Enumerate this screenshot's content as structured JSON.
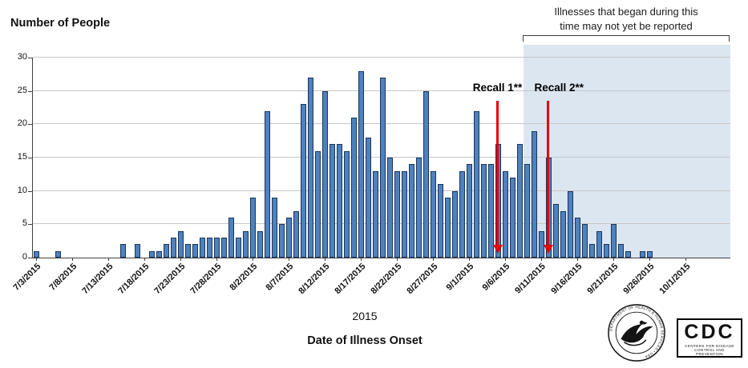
{
  "title": "Number of People",
  "note": {
    "line1": "Illnesses that began during this",
    "line2": "time may not yet be reported"
  },
  "x_year_label": "2015",
  "x_axis_title": "Date of Illness Onset",
  "logos": {
    "hhs_ring_text": "DEPARTMENT OF HEALTH & HUMAN SERVICES • USA",
    "cdc_acronym": "CDC",
    "cdc_tagline": "CENTERS FOR DISEASE CONTROL AND PREVENTION"
  },
  "chart_data": {
    "type": "bar",
    "title": "Number of People",
    "xlabel": "Date of Illness Onset",
    "ylabel": "Number of People",
    "year": "2015",
    "ylim": [
      0,
      30
    ],
    "yticks": [
      0,
      5,
      10,
      15,
      20,
      25,
      30
    ],
    "grid": "horizontal",
    "bar_color": "#4f81bd",
    "bar_border_color": "#17365d",
    "x_tick_labels": [
      "7/3/2015",
      "7/8/2015",
      "7/13/2015",
      "7/18/2015",
      "7/23/2015",
      "7/28/2015",
      "8/2/2015",
      "8/7/2015",
      "8/12/2015",
      "8/17/2015",
      "8/22/2015",
      "8/27/2015",
      "9/1/2015",
      "9/6/2015",
      "9/11/2015",
      "9/16/2015",
      "9/21/2015",
      "9/26/2015",
      "10/1/2015"
    ],
    "dates": [
      "7/3",
      "7/4",
      "7/5",
      "7/6",
      "7/7",
      "7/8",
      "7/9",
      "7/10",
      "7/11",
      "7/12",
      "7/13",
      "7/14",
      "7/15",
      "7/16",
      "7/17",
      "7/18",
      "7/19",
      "7/20",
      "7/21",
      "7/22",
      "7/23",
      "7/24",
      "7/25",
      "7/26",
      "7/27",
      "7/28",
      "7/29",
      "7/30",
      "7/31",
      "8/1",
      "8/2",
      "8/3",
      "8/4",
      "8/5",
      "8/6",
      "8/7",
      "8/8",
      "8/9",
      "8/10",
      "8/11",
      "8/12",
      "8/13",
      "8/14",
      "8/15",
      "8/16",
      "8/17",
      "8/18",
      "8/19",
      "8/20",
      "8/21",
      "8/22",
      "8/23",
      "8/24",
      "8/25",
      "8/26",
      "8/27",
      "8/28",
      "8/29",
      "8/30",
      "8/31",
      "9/1",
      "9/2",
      "9/3",
      "9/4",
      "9/5",
      "9/6",
      "9/7",
      "9/8",
      "9/9",
      "9/10",
      "9/11",
      "9/12",
      "9/13",
      "9/14",
      "9/15",
      "9/16",
      "9/17",
      "9/18",
      "9/19",
      "9/20",
      "9/21",
      "9/22",
      "9/23",
      "9/24",
      "9/25",
      "9/26",
      "9/27",
      "9/28",
      "9/29",
      "9/30",
      "10/1"
    ],
    "values": [
      1,
      0,
      0,
      1,
      0,
      0,
      0,
      0,
      0,
      0,
      0,
      0,
      2,
      0,
      2,
      0,
      1,
      1,
      2,
      3,
      4,
      2,
      2,
      3,
      3,
      3,
      3,
      6,
      3,
      4,
      9,
      4,
      22,
      9,
      5,
      6,
      7,
      23,
      27,
      16,
      25,
      17,
      17,
      16,
      21,
      28,
      18,
      13,
      27,
      15,
      13,
      13,
      14,
      15,
      25,
      13,
      11,
      9,
      10,
      13,
      14,
      22,
      14,
      14,
      17,
      13,
      12,
      17,
      14,
      19,
      4,
      15,
      8,
      7,
      10,
      6,
      5,
      2,
      4,
      2,
      5,
      2,
      1,
      0,
      1,
      1,
      0,
      0,
      0,
      0,
      0
    ],
    "shaded_region": {
      "start_date": "9/9",
      "start_index": 68,
      "color": "#dce6f1",
      "label": "Illnesses that began during this time may not yet be reported"
    },
    "annotations": [
      {
        "label": "Recall 1**",
        "date": "9/5",
        "index": 64,
        "align": "center",
        "color": "#e40000"
      },
      {
        "label": "Recall 2**",
        "date": "9/12",
        "index": 71,
        "align": "left",
        "color": "#e40000"
      }
    ]
  }
}
